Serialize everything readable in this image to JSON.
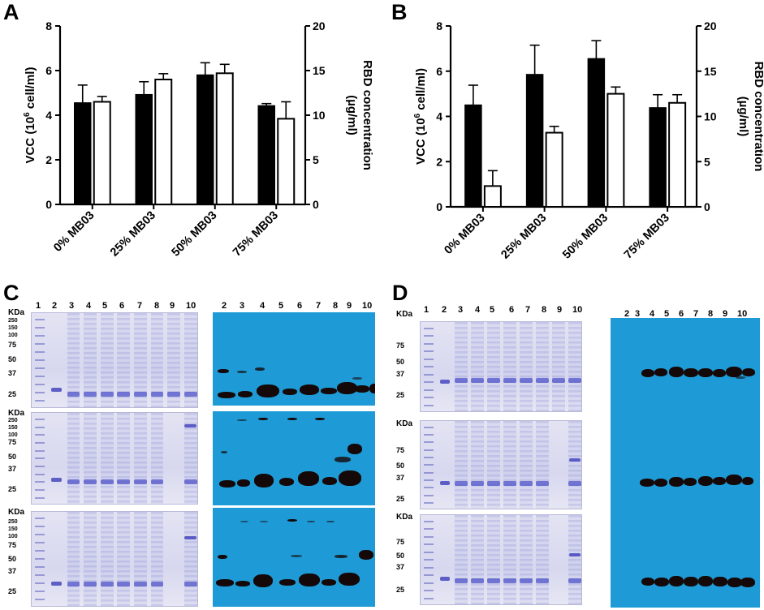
{
  "colors": {
    "vcc_bar": "#000000",
    "rbd_bar": "#ffffff",
    "gel_bg": "#d9daf0",
    "gel_band": "#5a5ec4",
    "blot_bg": "#1e9bd6",
    "blot_band": "#150808"
  },
  "panels": {
    "a": "A",
    "b": "B",
    "c": "C",
    "d": "D"
  },
  "chart_data": [
    {
      "type": "bar",
      "panel": "A",
      "categories": [
        "0% MB03",
        "25% MB03",
        "50% MB03",
        "75% MB03"
      ],
      "ylabel": "VCC (10⁶ cell/ml)",
      "ylabel_main": "VCC (10",
      "ylabel_sup": "6",
      "ylabel_tail": " cell/ml)",
      "y2label": "RBD concentration (µg/ml)",
      "y2label_line1": "RBD concentration",
      "y2label_line2": "(µg/ml)",
      "ylim": [
        0,
        8
      ],
      "y2lim": [
        0,
        20
      ],
      "yticks": [
        "0",
        "2",
        "4",
        "6",
        "8"
      ],
      "y2ticks": [
        "0",
        "5",
        "10",
        "15",
        "20"
      ],
      "series": [
        {
          "name": "VCC",
          "axis": "left",
          "values": [
            4.55,
            4.92,
            5.8,
            4.42
          ],
          "errors": [
            0.8,
            0.58,
            0.55,
            0.1
          ]
        },
        {
          "name": "RBD concentration",
          "axis": "right",
          "values": [
            11.5,
            14.0,
            14.7,
            9.6
          ],
          "errors": [
            0.6,
            0.65,
            1.0,
            1.9
          ]
        }
      ]
    },
    {
      "type": "bar",
      "panel": "B",
      "categories": [
        "0% MB03",
        "25% MB03",
        "50% MB03",
        "75% MB03"
      ],
      "ylabel": "VCC (10⁶ cell/ml)",
      "ylabel_main": "VCC (10",
      "ylabel_sup": "6",
      "ylabel_tail": " cell/ml)",
      "y2label": "RBD concentration (µg/ml)",
      "y2label_line1": "RBD concentration",
      "y2label_line2": "(µg/ml)",
      "ylim": [
        0,
        8
      ],
      "y2lim": [
        0,
        20
      ],
      "yticks": [
        "0",
        "2",
        "4",
        "6",
        "8"
      ],
      "y2ticks": [
        "0",
        "5",
        "10",
        "15",
        "20"
      ],
      "series": [
        {
          "name": "VCC",
          "axis": "left",
          "values": [
            4.5,
            5.85,
            6.55,
            4.38
          ],
          "errors": [
            0.88,
            1.3,
            0.8,
            0.58
          ]
        },
        {
          "name": "RBD concentration",
          "axis": "right",
          "values": [
            2.3,
            8.2,
            12.5,
            11.5
          ],
          "errors": [
            1.7,
            0.7,
            0.75,
            0.9
          ]
        }
      ]
    }
  ],
  "gels_c": {
    "lane_numbers": [
      "1",
      "2",
      "3",
      "4",
      "5",
      "6",
      "7",
      "8",
      "9",
      "10"
    ],
    "blot_lane_numbers": [
      "2",
      "3",
      "4",
      "5",
      "6",
      "7",
      "8",
      "9",
      "10"
    ],
    "kda_label": "KDa",
    "markers_top": [
      "250",
      "150",
      "100",
      "75",
      "50",
      "37",
      "25"
    ],
    "markers_mid": [
      "250",
      "150",
      "100",
      "75",
      "50",
      "37",
      "25"
    ],
    "markers_bottom": [
      "250",
      "150",
      "100",
      "75",
      "50",
      "37",
      "25"
    ]
  },
  "gels_d": {
    "lane_numbers": [
      "1",
      "2",
      "3",
      "4",
      "5",
      "6",
      "7",
      "8",
      "9",
      "10"
    ],
    "blot_lane_numbers": [
      "2",
      "3",
      "4",
      "5",
      "6",
      "7",
      "8",
      "9",
      "10"
    ],
    "kda_label": "KDa",
    "markers_top": [
      "75",
      "50",
      "37",
      "25"
    ],
    "markers_mid": [
      "75",
      "50",
      "37",
      "25"
    ],
    "markers_bottom": [
      "75",
      "50",
      "37",
      "25"
    ]
  }
}
